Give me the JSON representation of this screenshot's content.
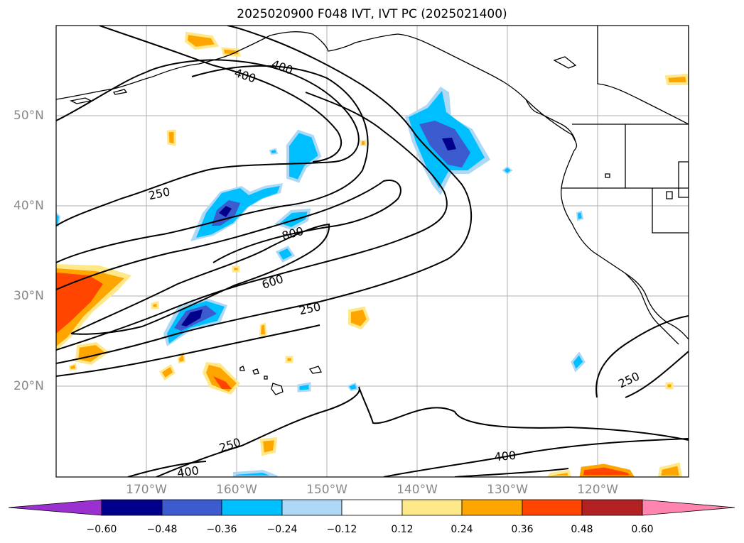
{
  "title": "2025020900 F048 IVT, IVT PC (2025021400)",
  "map": {
    "lon_labels": [
      "170°W",
      "160°W",
      "150°W",
      "140°W",
      "130°W",
      "120°W"
    ],
    "lat_labels": [
      "50°N",
      "40°N",
      "30°N",
      "20°N"
    ],
    "contour_labels": [
      "400",
      "400",
      "250",
      "800",
      "600",
      "250",
      "250",
      "250",
      "400",
      "400"
    ]
  },
  "colorbar": {
    "ticks": [
      "−0.60",
      "−0.48",
      "−0.36",
      "−0.24",
      "−0.12",
      "0.12",
      "0.24",
      "0.36",
      "0.48",
      "0.60"
    ],
    "colors": {
      "under": "#9b30d0",
      "n060": "#00008b",
      "n048": "#3b5bcf",
      "n036": "#00bfff",
      "n024": "#add8f6",
      "zero": "#ffffff",
      "p012": "#ffe88a",
      "p024": "#ffa500",
      "p036": "#ff4500",
      "p048": "#b22222",
      "over": "#ff85b0"
    }
  }
}
